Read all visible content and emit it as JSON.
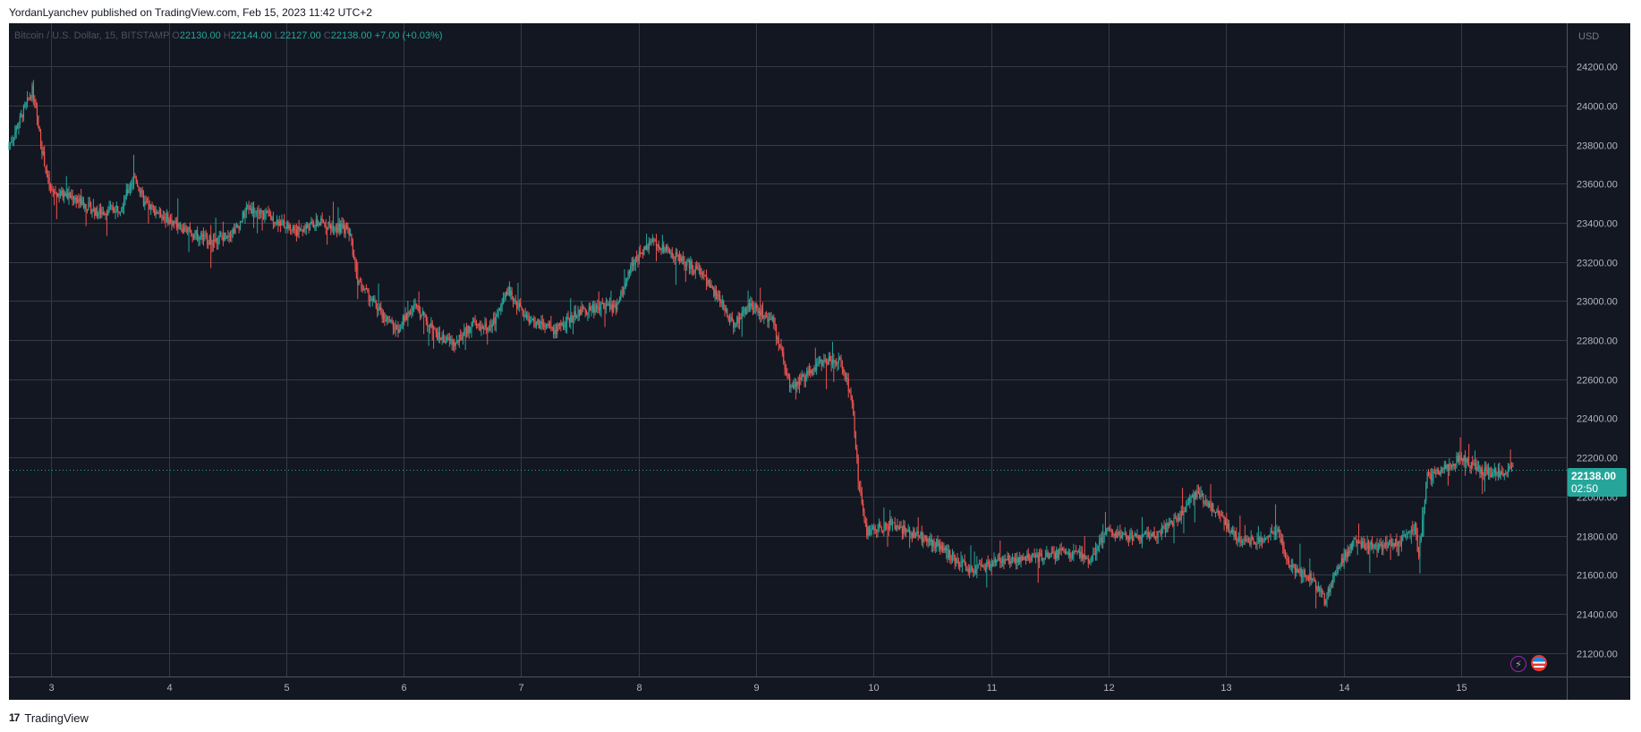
{
  "header": {
    "publisher_line": "YordanLyanchev published on TradingView.com, Feb 15, 2023 11:42 UTC+2"
  },
  "legend": {
    "symbol": "Bitcoin / U.S. Dollar, 15, BITSTAMP",
    "o_label": "O",
    "o_value": "22130.00",
    "h_label": "H",
    "h_value": "22144.00",
    "l_label": "L",
    "l_value": "22127.00",
    "c_label": "C",
    "c_value": "22138.00",
    "change": "+7.00 (+0.03%)"
  },
  "price_tag": {
    "price": "22138.00",
    "countdown": "02:50"
  },
  "footer": {
    "brand": "TradingView",
    "logo_glyph": "17"
  },
  "icons": {
    "flash": "lightning-icon",
    "flag": "us-flag-icon"
  },
  "colors": {
    "background": "#131722",
    "up": "#26a69a",
    "down": "#ef5350",
    "grid": "#363a45",
    "axis_text": "#b2b5be"
  },
  "chart_data": {
    "type": "candlestick",
    "title": "",
    "currency_label": "USD",
    "xlabel": "",
    "ylabel": "",
    "ylim": [
      21080,
      24420
    ],
    "xlim": [
      2.64,
      15.9
    ],
    "y_ticks": [
      21200,
      21400,
      21600,
      21800,
      22000,
      22200,
      22400,
      22600,
      22800,
      23000,
      23200,
      23400,
      23600,
      23800,
      24000,
      24200
    ],
    "y_tick_labels": [
      "21200.00",
      "21400.00",
      "21600.00",
      "21800.00",
      "22000.00",
      "22200.00",
      "22400.00",
      "22600.00",
      "22800.00",
      "23000.00",
      "23200.00",
      "23400.00",
      "23600.00",
      "23800.00",
      "24000.00",
      "24200.00"
    ],
    "x_ticks": [
      3,
      4,
      5,
      6,
      7,
      8,
      9,
      10,
      11,
      12,
      13,
      14,
      15
    ],
    "x_tick_labels": [
      "3",
      "4",
      "5",
      "6",
      "7",
      "8",
      "9",
      "10",
      "11",
      "12",
      "13",
      "14",
      "15"
    ],
    "last_price": 22138,
    "grid": true,
    "price_path": [
      [
        2.64,
        23780
      ],
      [
        2.74,
        23920
      ],
      [
        2.85,
        24080
      ],
      [
        2.93,
        23780
      ],
      [
        3.0,
        23560
      ],
      [
        3.2,
        23530
      ],
      [
        3.4,
        23450
      ],
      [
        3.6,
        23480
      ],
      [
        3.72,
        23640
      ],
      [
        3.8,
        23500
      ],
      [
        4.0,
        23420
      ],
      [
        4.2,
        23350
      ],
      [
        4.4,
        23300
      ],
      [
        4.6,
        23380
      ],
      [
        4.68,
        23480
      ],
      [
        4.9,
        23420
      ],
      [
        5.1,
        23360
      ],
      [
        5.3,
        23400
      ],
      [
        5.55,
        23360
      ],
      [
        5.62,
        23100
      ],
      [
        5.8,
        22950
      ],
      [
        5.95,
        22850
      ],
      [
        6.1,
        22980
      ],
      [
        6.3,
        22820
      ],
      [
        6.45,
        22780
      ],
      [
        6.6,
        22880
      ],
      [
        6.75,
        22860
      ],
      [
        6.9,
        23050
      ],
      [
        7.05,
        22920
      ],
      [
        7.15,
        22880
      ],
      [
        7.3,
        22850
      ],
      [
        7.5,
        22940
      ],
      [
        7.7,
        22980
      ],
      [
        7.82,
        22960
      ],
      [
        7.95,
        23180
      ],
      [
        8.12,
        23310
      ],
      [
        8.3,
        23240
      ],
      [
        8.55,
        23140
      ],
      [
        8.7,
        23000
      ],
      [
        8.82,
        22880
      ],
      [
        8.95,
        22980
      ],
      [
        9.15,
        22900
      ],
      [
        9.3,
        22560
      ],
      [
        9.45,
        22620
      ],
      [
        9.6,
        22700
      ],
      [
        9.72,
        22690
      ],
      [
        9.82,
        22520
      ],
      [
        9.88,
        22100
      ],
      [
        9.95,
        21820
      ],
      [
        10.15,
        21860
      ],
      [
        10.35,
        21810
      ],
      [
        10.55,
        21760
      ],
      [
        10.7,
        21680
      ],
      [
        10.85,
        21620
      ],
      [
        11.0,
        21660
      ],
      [
        11.2,
        21680
      ],
      [
        11.45,
        21690
      ],
      [
        11.65,
        21720
      ],
      [
        11.85,
        21680
      ],
      [
        12.0,
        21820
      ],
      [
        12.2,
        21790
      ],
      [
        12.4,
        21800
      ],
      [
        12.6,
        21880
      ],
      [
        12.75,
        22020
      ],
      [
        12.95,
        21910
      ],
      [
        13.1,
        21790
      ],
      [
        13.25,
        21770
      ],
      [
        13.45,
        21820
      ],
      [
        13.55,
        21640
      ],
      [
        13.72,
        21590
      ],
      [
        13.85,
        21470
      ],
      [
        13.95,
        21620
      ],
      [
        14.1,
        21770
      ],
      [
        14.3,
        21740
      ],
      [
        14.5,
        21770
      ],
      [
        14.62,
        21840
      ],
      [
        14.65,
        21690
      ],
      [
        14.72,
        22100
      ],
      [
        14.85,
        22130
      ],
      [
        15.0,
        22200
      ],
      [
        15.18,
        22130
      ],
      [
        15.35,
        22120
      ],
      [
        15.45,
        22138
      ]
    ]
  }
}
